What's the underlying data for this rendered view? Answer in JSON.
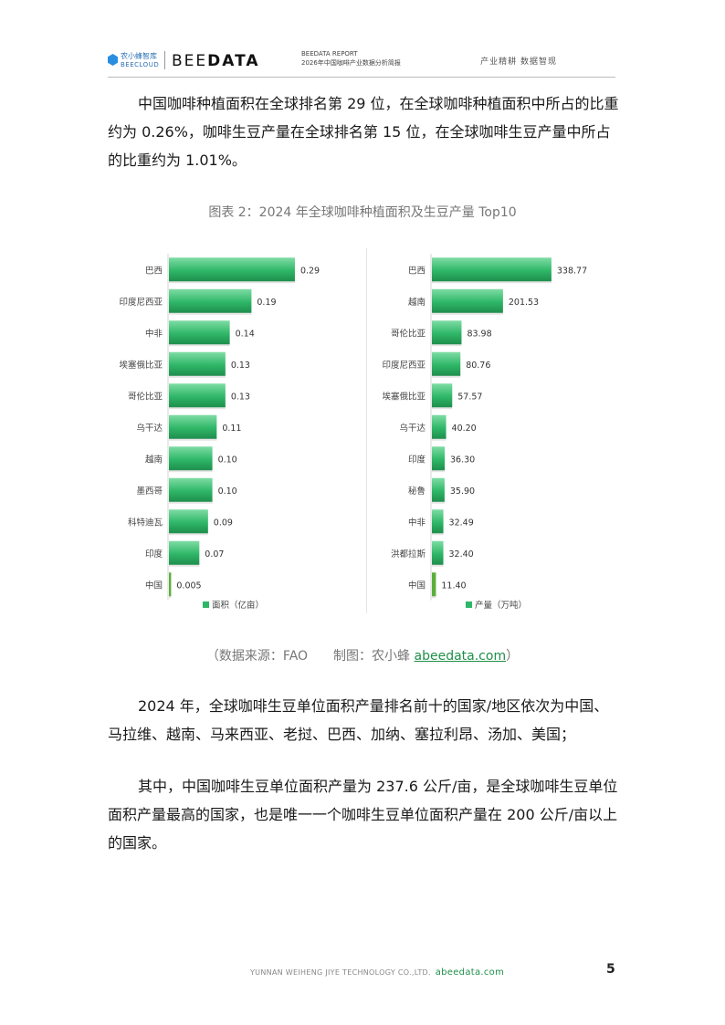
{
  "header": {
    "logo_cn": "农小蜂智库",
    "logo_en": "BEECLOUD",
    "brand_pre": "BEE",
    "brand_bold": "DATA",
    "report_name": "BEEDATA REPORT",
    "report_sub": "2026年中国咖啡产业数据分析简报",
    "slogan": "产业精耕 数据智现"
  },
  "para1": {
    "line1": "中国咖啡种植面积在全球排名第 29 位，在全球咖啡种植面积中所占的比重",
    "line2": "约为 0.26%，咖啡生豆产量在全球排名第 15 位，在全球咖啡生豆产量中所占",
    "line3": "的比重约为 1.01%。"
  },
  "figure_caption": "图表 2：2024 年全球咖啡种植面积及生豆产量 Top10",
  "source": {
    "text": "（数据来源：FAO　　制图：农小蜂 ",
    "link": "abeedata.com",
    "close": "）"
  },
  "para2": {
    "line1": "2024 年，全球咖啡生豆单位面积产量排名前十的国家/地区依次为中国、",
    "line2": "马拉维、越南、马来西亚、老挝、巴西、加纳、塞拉利昂、汤加、美国；"
  },
  "para3": {
    "line1": "其中，中国咖啡生豆单位面积产量为 237.6 公斤/亩，是全球咖啡生豆单位",
    "line2": "面积产量最高的国家，也是唯一一个咖啡生豆单位面积产量在 200 公斤/亩以上",
    "line3": "的国家。"
  },
  "footer": {
    "company": "YUNNAN WEIHENG JIYE TECHNOLOGY CO.,LTD.",
    "domain": "abeedata.com",
    "page_number": "5"
  },
  "colors": {
    "bar": "#2fb768",
    "bar_light": "#7fdca5",
    "bar_dark": "#1e8e4c",
    "china_bar": "#5aaf3c"
  },
  "chart_data": [
    {
      "type": "bar",
      "orientation": "horizontal",
      "categories": [
        "巴西",
        "印度尼西亚",
        "中非",
        "埃塞俄比亚",
        "哥伦比亚",
        "乌干达",
        "越南",
        "墨西哥",
        "科特迪瓦",
        "印度",
        "中国"
      ],
      "values": [
        0.29,
        0.19,
        0.14,
        0.13,
        0.13,
        0.11,
        0.1,
        0.1,
        0.09,
        0.07,
        0.005
      ],
      "value_labels": [
        "0.29",
        "0.19",
        "0.14",
        "0.13",
        "0.13",
        "0.11",
        "0.10",
        "0.10",
        "0.09",
        "0.07",
        "0.005"
      ],
      "series": [
        {
          "name": "面积（亿亩）"
        }
      ],
      "xlim": [
        0,
        0.37
      ],
      "legend": "bottom",
      "grid": false
    },
    {
      "type": "bar",
      "orientation": "horizontal",
      "categories": [
        "巴西",
        "越南",
        "哥伦比亚",
        "印度尼西亚",
        "埃塞俄比亚",
        "乌干达",
        "印度",
        "秘鲁",
        "中非",
        "洪都拉斯",
        "中国"
      ],
      "values": [
        338.77,
        201.53,
        83.98,
        80.76,
        57.57,
        40.2,
        36.3,
        35.9,
        32.49,
        32.4,
        11.4
      ],
      "value_labels": [
        "338.77",
        "201.53",
        "83.98",
        "80.76",
        "57.57",
        "40.20",
        "36.30",
        "35.90",
        "32.49",
        "32.40",
        "11.40"
      ],
      "series": [
        {
          "name": "产量（万吨）"
        }
      ],
      "xlim": [
        0,
        440
      ],
      "legend": "bottom",
      "grid": false
    }
  ]
}
